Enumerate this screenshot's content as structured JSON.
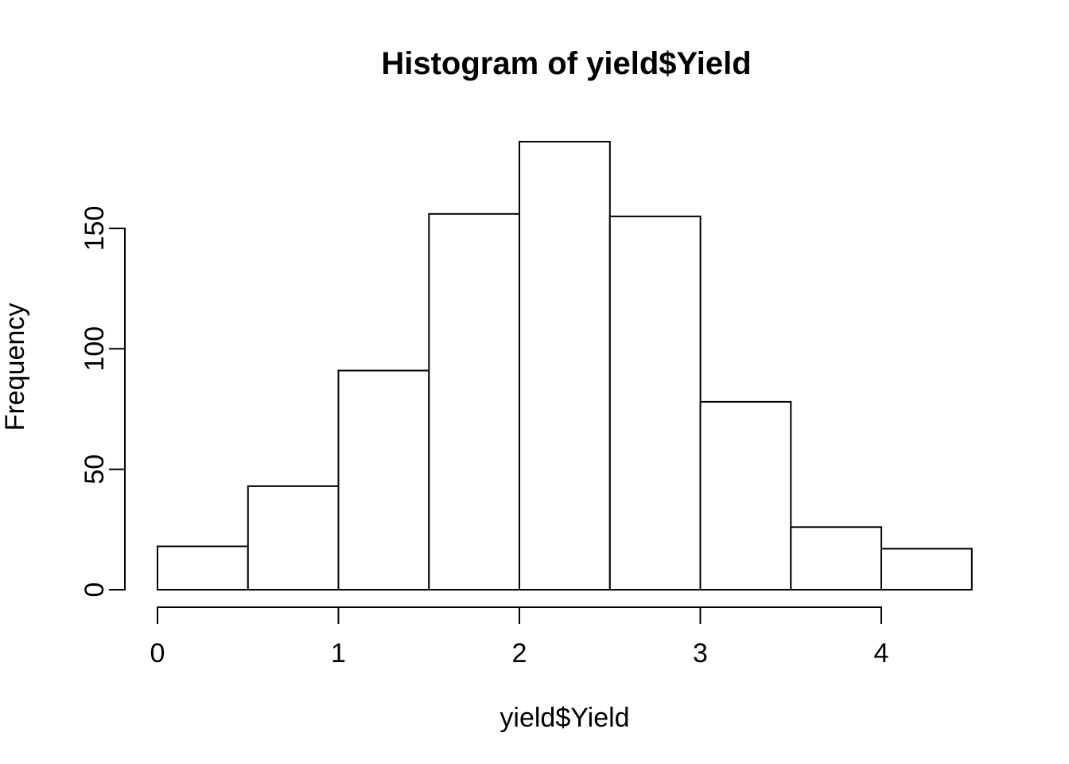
{
  "title": "Histogram of yield$Yield",
  "chart_data": {
    "type": "bar",
    "subtype": "histogram",
    "title": "Histogram of yield$Yield",
    "xlabel": "yield$Yield",
    "ylabel": "Frequency",
    "breaks": [
      0,
      0.5,
      1,
      1.5,
      2,
      2.5,
      3,
      3.5,
      4,
      4.5
    ],
    "bin_width": 0.5,
    "counts": [
      18,
      43,
      91,
      156,
      186,
      155,
      78,
      26,
      17
    ],
    "x_ticks": [
      0,
      1,
      2,
      3,
      4
    ],
    "y_ticks": [
      0,
      50,
      100,
      150
    ],
    "xlim": [
      0,
      4.5
    ],
    "ylim": [
      0,
      186
    ],
    "grid": "off",
    "legend": "none",
    "bar_fill": "#ffffff",
    "bar_stroke": "#000000",
    "axis_color": "#000000",
    "text_color": "#000000",
    "background": "#ffffff"
  }
}
